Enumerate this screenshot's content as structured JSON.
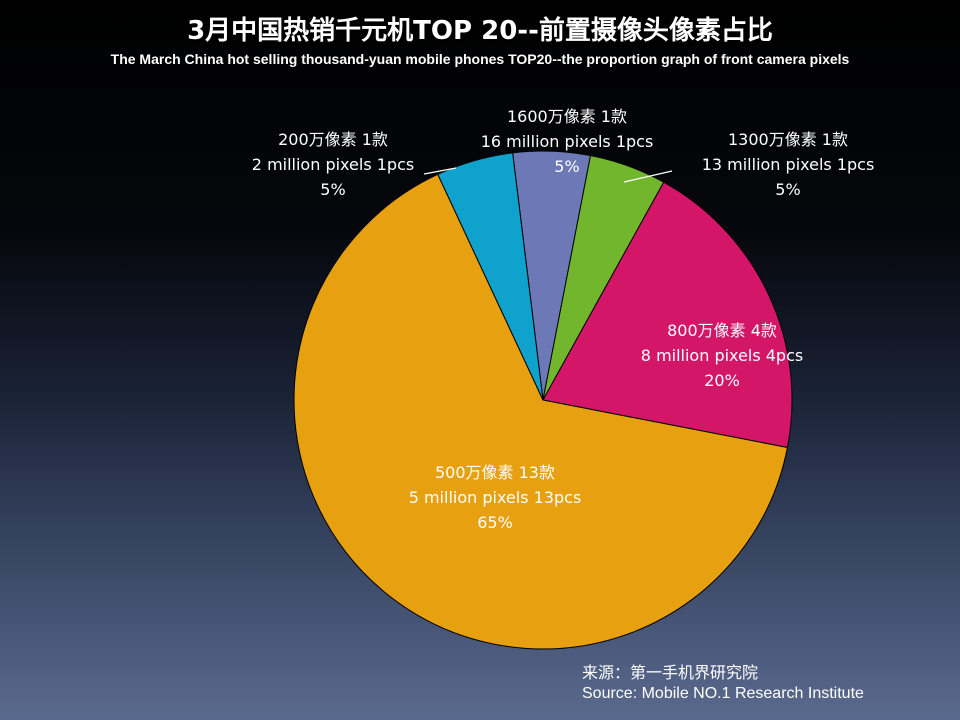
{
  "title": "3月中国热销千元机TOP 20--前置摄像头像素占比",
  "subtitle": "The March China hot selling thousand-yuan mobile phones TOP20--the proportion graph of front camera pixels",
  "chart_data": {
    "type": "pie",
    "title": "3月中国热销千元机TOP 20--前置摄像头像素占比",
    "subtitle": "The March China hot selling thousand-yuan mobile phones TOP20--the proportion graph of front camera pixels",
    "total": 20,
    "slices": [
      {
        "name": "1600万像素",
        "count": 1,
        "value": 5,
        "label_lines": [
          "1600万像素 1款",
          "16 million pixels 1pcs",
          "5%"
        ],
        "color": "#6c79b6",
        "label_color": "#ffffff"
      },
      {
        "name": "1300万像素",
        "count": 1,
        "value": 5,
        "label_lines": [
          "1300万像素 1款",
          "13 million pixels 1pcs",
          "5%"
        ],
        "color": "#72b62e",
        "label_color": "#ffffff"
      },
      {
        "name": "800万像素",
        "count": 4,
        "value": 20,
        "label_lines": [
          "800万像素 4款",
          "8 million pixels 4pcs",
          "20%"
        ],
        "color": "#d31668",
        "label_color": "#ffffff"
      },
      {
        "name": "500万像素",
        "count": 13,
        "value": 65,
        "label_lines": [
          "500万像素 13款",
          "5 million pixels 13pcs",
          "65%"
        ],
        "color": "#e6a010",
        "label_color": "#ffffff"
      },
      {
        "name": "200万像素",
        "count": 1,
        "value": 5,
        "label_lines": [
          "200万像素 1款",
          "2 million pixels 1pcs",
          "5%"
        ],
        "color": "#0ea2cc",
        "label_color": "#ffffff"
      }
    ]
  },
  "source": {
    "cn": "来源：第一手机界研究院",
    "en": "Source: Mobile NO.1 Research Institute"
  }
}
